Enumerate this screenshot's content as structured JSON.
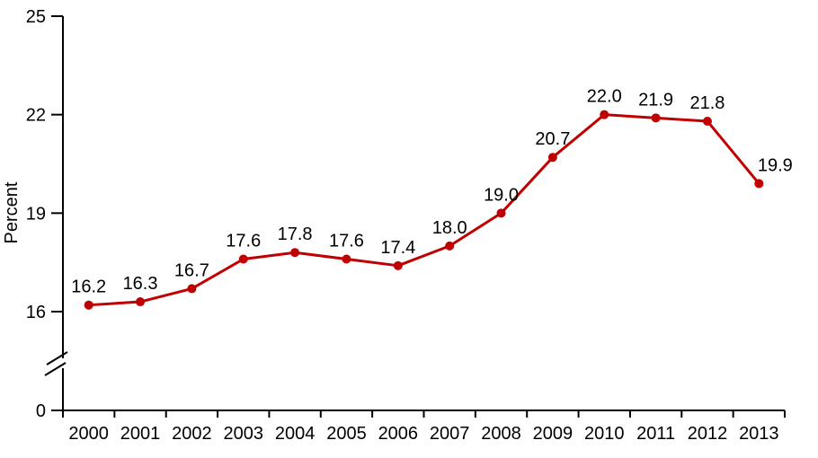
{
  "chart_data": {
    "type": "line",
    "title": "",
    "xlabel": "",
    "ylabel": "Percent",
    "categories": [
      "2000",
      "2001",
      "2002",
      "2003",
      "2004",
      "2005",
      "2006",
      "2007",
      "2008",
      "2009",
      "2010",
      "2011",
      "2012",
      "2013"
    ],
    "series": [
      {
        "name": "Percent",
        "color": "#C00000",
        "values": [
          16.2,
          16.3,
          16.7,
          17.6,
          17.8,
          17.6,
          17.4,
          18.0,
          19.0,
          20.7,
          22.0,
          21.9,
          21.8,
          19.9
        ],
        "data_labels": [
          "16.2",
          "16.3",
          "16.7",
          "17.6",
          "17.8",
          "17.6",
          "17.4",
          "18.0",
          "19.0",
          "20.7",
          "22.0",
          "21.9",
          "21.8",
          "19.9"
        ]
      }
    ],
    "y_axis": {
      "tick_values": [
        25,
        22,
        19,
        16,
        0
      ],
      "axis_break": true,
      "break_between": [
        0,
        16
      ],
      "value_range_shown": [
        16,
        25
      ]
    },
    "x_axis": {
      "tick_style": "category-boundaries"
    },
    "legend": false,
    "grid": false,
    "marker": "circle",
    "background": "#FFFFFF",
    "text_color": "#000000",
    "axis_color": "#000000"
  }
}
